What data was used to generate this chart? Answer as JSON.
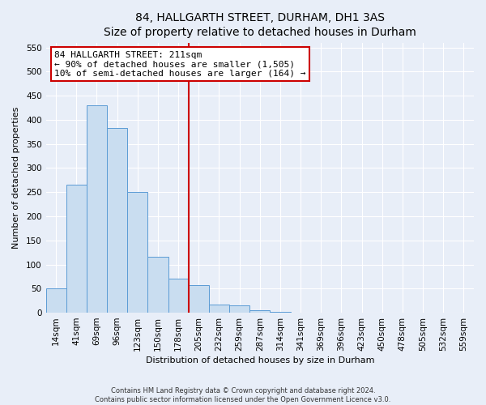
{
  "title": "84, HALLGARTH STREET, DURHAM, DH1 3AS",
  "subtitle": "Size of property relative to detached houses in Durham",
  "xlabel": "Distribution of detached houses by size in Durham",
  "ylabel": "Number of detached properties",
  "bar_labels": [
    "14sqm",
    "41sqm",
    "69sqm",
    "96sqm",
    "123sqm",
    "150sqm",
    "178sqm",
    "205sqm",
    "232sqm",
    "259sqm",
    "287sqm",
    "314sqm",
    "341sqm",
    "369sqm",
    "396sqm",
    "423sqm",
    "450sqm",
    "478sqm",
    "505sqm",
    "532sqm",
    "559sqm"
  ],
  "bar_values": [
    50,
    265,
    430,
    383,
    250,
    116,
    70,
    58,
    17,
    15,
    5,
    1,
    0,
    0,
    0,
    0,
    0,
    0,
    0,
    0,
    0
  ],
  "bar_color": "#c9ddf0",
  "bar_edge_color": "#5b9bd5",
  "vline_index": 7,
  "vline_color": "#cc0000",
  "annotation_text": "84 HALLGARTH STREET: 211sqm\n← 90% of detached houses are smaller (1,505)\n10% of semi-detached houses are larger (164) →",
  "annotation_box_edge_color": "#cc0000",
  "annotation_box_face_color": "#ffffff",
  "ylim": [
    0,
    560
  ],
  "yticks": [
    0,
    50,
    100,
    150,
    200,
    250,
    300,
    350,
    400,
    450,
    500,
    550
  ],
  "footer_line1": "Contains HM Land Registry data © Crown copyright and database right 2024.",
  "footer_line2": "Contains public sector information licensed under the Open Government Licence v3.0.",
  "bg_color": "#e8eef8",
  "plot_bg_color": "#e8eef8",
  "title_fontsize": 10,
  "subtitle_fontsize": 9,
  "axis_label_fontsize": 8,
  "tick_fontsize": 7.5,
  "annotation_fontsize": 8,
  "footer_fontsize": 6
}
